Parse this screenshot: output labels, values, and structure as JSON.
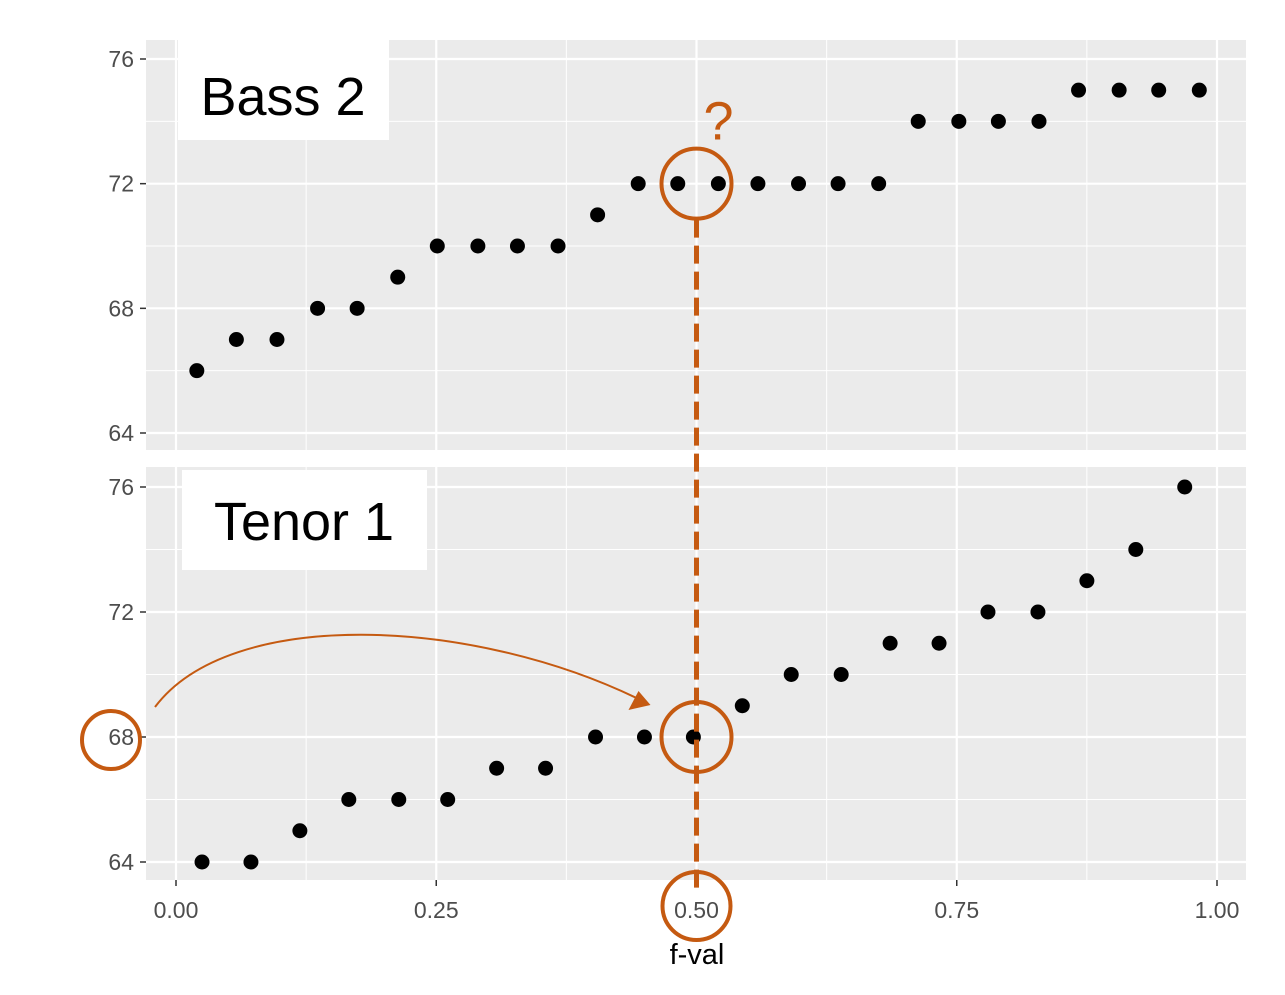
{
  "colors": {
    "panel_bg": "#ebebeb",
    "grid": "#ffffff",
    "point": "#000000",
    "annotation": "#c55a11",
    "tick_text": "#4d4d4d"
  },
  "chart_data": {
    "type": "scatter",
    "xlabel": "f-val",
    "xlim": [
      0,
      1
    ],
    "x_ticks": [
      0,
      0.25,
      0.5,
      0.75,
      1
    ],
    "x_tick_labels": [
      "0.00",
      "0.25",
      "0.50",
      "0.75",
      "1.00"
    ],
    "grid": true,
    "panels": [
      {
        "label": "Bass 2",
        "ylim": [
          64,
          76
        ],
        "y_ticks": [
          64,
          68,
          72,
          76
        ],
        "y_tick_labels": [
          "64",
          "68",
          "72",
          "76"
        ],
        "points": [
          [
            0.02,
            66
          ],
          [
            0.058,
            67
          ],
          [
            0.097,
            67
          ],
          [
            0.136,
            68
          ],
          [
            0.174,
            68
          ],
          [
            0.213,
            69
          ],
          [
            0.251,
            70
          ],
          [
            0.29,
            70
          ],
          [
            0.328,
            70
          ],
          [
            0.367,
            70
          ],
          [
            0.405,
            71
          ],
          [
            0.444,
            72
          ],
          [
            0.482,
            72
          ],
          [
            0.521,
            72
          ],
          [
            0.559,
            72
          ],
          [
            0.598,
            72
          ],
          [
            0.636,
            72
          ],
          [
            0.675,
            72
          ],
          [
            0.713,
            74
          ],
          [
            0.752,
            74
          ],
          [
            0.79,
            74
          ],
          [
            0.829,
            74
          ],
          [
            0.867,
            75
          ],
          [
            0.906,
            75
          ],
          [
            0.944,
            75
          ],
          [
            0.983,
            75
          ]
        ]
      },
      {
        "label": "Tenor 1",
        "ylim": [
          64,
          76
        ],
        "y_ticks": [
          64,
          68,
          72,
          76
        ],
        "y_tick_labels": [
          "64",
          "68",
          "72",
          "76"
        ],
        "points": [
          [
            0.025,
            64
          ],
          [
            0.072,
            64
          ],
          [
            0.119,
            65
          ],
          [
            0.166,
            66
          ],
          [
            0.214,
            66
          ],
          [
            0.261,
            66
          ],
          [
            0.308,
            67
          ],
          [
            0.355,
            67
          ],
          [
            0.403,
            68
          ],
          [
            0.45,
            68
          ],
          [
            0.497,
            68
          ],
          [
            0.544,
            69
          ],
          [
            0.591,
            70
          ],
          [
            0.639,
            70
          ],
          [
            0.686,
            71
          ],
          [
            0.733,
            71
          ],
          [
            0.78,
            72
          ],
          [
            0.828,
            72
          ],
          [
            0.875,
            73
          ],
          [
            0.922,
            74
          ],
          [
            0.969,
            76
          ]
        ]
      }
    ],
    "annotations": {
      "question_mark": "?",
      "highlight_x": 0.5,
      "highlight_top_y": 72,
      "highlight_bottom_y": 68,
      "highlight_tick_y": 68
    }
  }
}
